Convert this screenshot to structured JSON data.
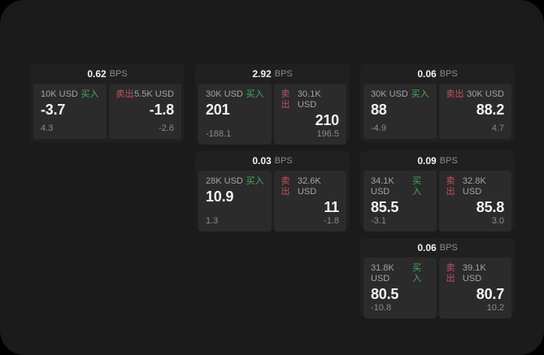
{
  "labels": {
    "buy": "买入",
    "sell": "卖出",
    "bps": "BPS"
  },
  "colors": {
    "surface": "#1b1b1b",
    "card": "#202020",
    "panel": "#2b2b2b",
    "buy_green": "#43a95e",
    "sell_red": "#c44f63",
    "text_primary": "#f4f4f4",
    "text_secondary": "#8a8a8a"
  },
  "cards": [
    {
      "bps": "0.62",
      "col": 1,
      "row": 1,
      "buy": {
        "amount": "10K USD",
        "value": "-3.7",
        "sub": "4.3"
      },
      "sell": {
        "amount": "5.5K USD",
        "value": "-1.8",
        "sub": "-2.6"
      }
    },
    {
      "bps": "2.92",
      "col": 2,
      "row": 1,
      "buy": {
        "amount": "30K USD",
        "value": "201",
        "sub": "-188.1"
      },
      "sell": {
        "amount": "30.1K USD",
        "value": "210",
        "sub": "196.5"
      }
    },
    {
      "bps": "0.06",
      "col": 3,
      "row": 1,
      "buy": {
        "amount": "30K USD",
        "value": "88",
        "sub": "-4.9"
      },
      "sell": {
        "amount": "30K USD",
        "value": "88.2",
        "sub": "4.7"
      }
    },
    {
      "bps": "0.03",
      "col": 2,
      "row": 2,
      "buy": {
        "amount": "28K USD",
        "value": "10.9",
        "sub": "1.3"
      },
      "sell": {
        "amount": "32.6K USD",
        "value": "11",
        "sub": "-1.8"
      }
    },
    {
      "bps": "0.09",
      "col": 3,
      "row": 2,
      "buy": {
        "amount": "34.1K USD",
        "value": "85.5",
        "sub": "-3.1"
      },
      "sell": {
        "amount": "32.8K USD",
        "value": "85.8",
        "sub": "3.0"
      }
    },
    {
      "bps": "0.06",
      "col": 3,
      "row": 3,
      "buy": {
        "amount": "31.8K USD",
        "value": "80.5",
        "sub": "-10.8"
      },
      "sell": {
        "amount": "39.1K USD",
        "value": "80.7",
        "sub": "10.2"
      }
    }
  ]
}
